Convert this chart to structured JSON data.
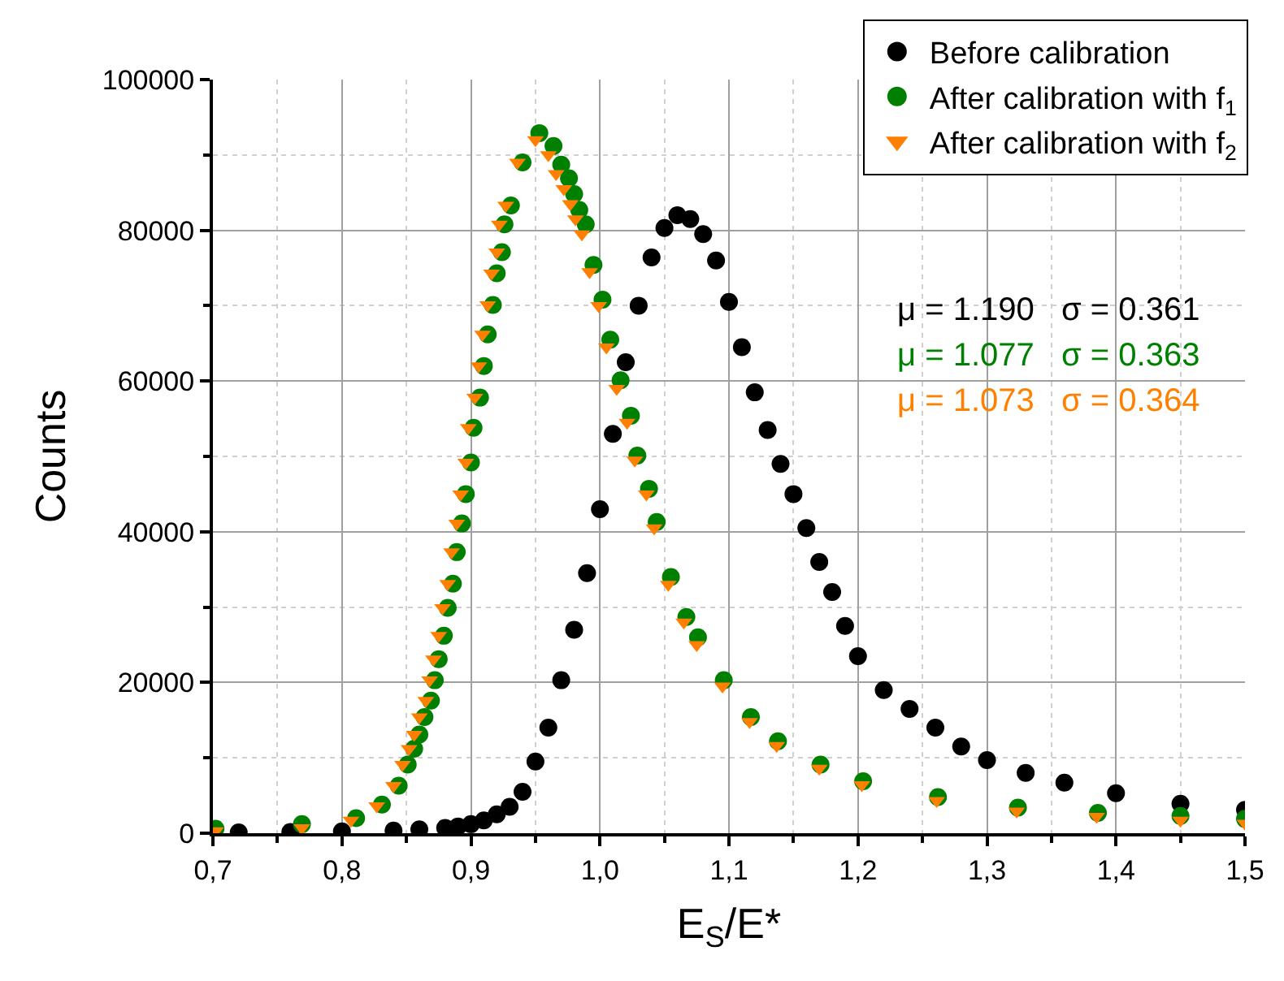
{
  "chart_data": {
    "type": "scatter",
    "xlabel": "E$_{S}$/E*",
    "ylabel": "Counts",
    "xlim": [
      0.7,
      1.5
    ],
    "ylim": [
      0,
      100000
    ],
    "xticks": [
      {
        "value": 0.7,
        "label": "0,7"
      },
      {
        "value": 0.8,
        "label": "0,8"
      },
      {
        "value": 0.9,
        "label": "0,9"
      },
      {
        "value": 1.0,
        "label": "1,0"
      },
      {
        "value": 1.1,
        "label": "1,1"
      },
      {
        "value": 1.2,
        "label": "1,2"
      },
      {
        "value": 1.3,
        "label": "1,3"
      },
      {
        "value": 1.4,
        "label": "1,4"
      },
      {
        "value": 1.5,
        "label": "1,5"
      }
    ],
    "yticks": [
      0,
      20000,
      40000,
      60000,
      80000,
      100000
    ],
    "grid": true,
    "legend": "top right",
    "annotations": [
      "μ = 1.190   σ = 0.361",
      "μ = 1.077   σ = 0.363",
      "μ = 1.073   σ = 0.364"
    ],
    "series": [
      {
        "name": "Before calibration",
        "color": "#000000",
        "marker": "circle",
        "x": [
          0.72,
          0.76,
          0.8,
          0.84,
          0.86,
          0.88,
          0.89,
          0.9,
          0.91,
          0.92,
          0.93,
          0.94,
          0.95,
          0.96,
          0.97,
          0.98,
          0.99,
          1.0,
          1.01,
          1.02,
          1.03,
          1.04,
          1.05,
          1.06,
          1.07,
          1.08,
          1.09,
          1.1,
          1.11,
          1.12,
          1.13,
          1.14,
          1.15,
          1.16,
          1.17,
          1.18,
          1.19,
          1.2,
          1.22,
          1.24,
          1.26,
          1.28,
          1.3,
          1.33,
          1.36,
          1.4,
          1.45,
          1.5
        ],
        "values": [
          100,
          150,
          250,
          350,
          500,
          700,
          900,
          1200,
          1700,
          2500,
          3500,
          5500,
          9500,
          14000,
          20300,
          27000,
          34500,
          43000,
          53000,
          62500,
          70000,
          76400,
          80300,
          82000,
          81500,
          79500,
          76000,
          70500,
          64500,
          58500,
          53500,
          49000,
          45000,
          40500,
          36000,
          32000,
          27500,
          23500,
          19000,
          16500,
          14000,
          11500,
          9700,
          8000,
          6700,
          5300,
          3900,
          3100
        ]
      },
      {
        "name": "After calibration with f$_{1}$",
        "color": "#008000",
        "marker": "circle",
        "x": [
          0.702,
          0.769,
          0.811,
          0.831,
          0.844,
          0.851,
          0.856,
          0.86,
          0.864,
          0.869,
          0.872,
          0.875,
          0.879,
          0.882,
          0.886,
          0.889,
          0.893,
          0.896,
          0.9,
          0.902,
          0.907,
          0.91,
          0.913,
          0.917,
          0.92,
          0.924,
          0.926,
          0.931,
          0.94,
          0.953,
          0.964,
          0.97,
          0.976,
          0.98,
          0.984,
          0.989,
          0.995,
          1.002,
          1.008,
          1.016,
          1.024,
          1.029,
          1.038,
          1.044,
          1.055,
          1.067,
          1.076,
          1.096,
          1.117,
          1.138,
          1.171,
          1.204,
          1.262,
          1.324,
          1.386,
          1.45,
          1.5
        ],
        "values": [
          600,
          1200,
          2000,
          3800,
          6300,
          9100,
          11200,
          13100,
          15400,
          17600,
          20300,
          23100,
          26200,
          29900,
          33100,
          37300,
          41100,
          45000,
          49200,
          53800,
          57800,
          62000,
          66200,
          70100,
          74300,
          77100,
          80800,
          83300,
          89000,
          92900,
          91200,
          88700,
          86900,
          84800,
          82700,
          80800,
          75400,
          70800,
          65500,
          60100,
          55400,
          50100,
          45700,
          41300,
          34000,
          28700,
          26000,
          20300,
          15400,
          12200,
          9100,
          6900,
          4800,
          3400,
          2700,
          2300,
          1900
        ]
      },
      {
        "name": "After calibration with f$_{2}$",
        "color": "#ff8000",
        "marker": "triangle",
        "x": [
          0.702,
          0.769,
          0.807,
          0.827,
          0.84,
          0.847,
          0.852,
          0.856,
          0.86,
          0.865,
          0.868,
          0.871,
          0.875,
          0.878,
          0.882,
          0.885,
          0.889,
          0.892,
          0.896,
          0.898,
          0.903,
          0.906,
          0.909,
          0.913,
          0.916,
          0.92,
          0.922,
          0.927,
          0.936,
          0.95,
          0.96,
          0.966,
          0.972,
          0.977,
          0.981,
          0.986,
          0.992,
          0.999,
          1.005,
          1.013,
          1.021,
          1.027,
          1.036,
          1.042,
          1.053,
          1.065,
          1.075,
          1.095,
          1.116,
          1.137,
          1.17,
          1.203,
          1.261,
          1.323,
          1.385,
          1.45,
          1.5
        ],
        "values": [
          300,
          700,
          1700,
          3600,
          6300,
          9100,
          11200,
          13100,
          15400,
          17600,
          20300,
          23100,
          26200,
          29900,
          33100,
          37300,
          41100,
          45000,
          49200,
          53800,
          57800,
          62000,
          66200,
          70100,
          74300,
          77100,
          80800,
          83300,
          89000,
          92000,
          90000,
          87500,
          85500,
          83500,
          81500,
          79500,
          74500,
          70000,
          64500,
          59000,
          54500,
          49500,
          45000,
          40500,
          33000,
          28000,
          25000,
          19500,
          14800,
          11600,
          8600,
          6400,
          4300,
          2900,
          2200,
          1700,
          1300
        ]
      }
    ]
  }
}
